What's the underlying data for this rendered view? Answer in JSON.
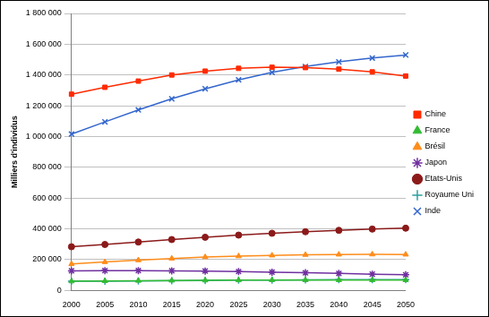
{
  "chart_data": {
    "type": "line",
    "y_label": "Milliers d'individus",
    "categories": [
      "2000",
      "2005",
      "2010",
      "2015",
      "2020",
      "2025",
      "2030",
      "2035",
      "2040",
      "2045",
      "2050"
    ],
    "series": [
      {
        "name": "Chine",
        "color": "#ff2a00",
        "marker": "square",
        "values": [
          1275000,
          1320000,
          1360000,
          1400000,
          1425000,
          1443000,
          1450000,
          1448000,
          1438000,
          1420000,
          1393000
        ]
      },
      {
        "name": "France",
        "color": "#33bb33",
        "marker": "triangle",
        "values": [
          59000,
          61000,
          63000,
          64000,
          65000,
          66000,
          67000,
          67000,
          67000,
          67000,
          67000
        ]
      },
      {
        "name": "Brésil",
        "color": "#ff8c1a",
        "marker": "triangle",
        "values": [
          171000,
          184000,
          196000,
          207000,
          216000,
          222000,
          227000,
          231000,
          233000,
          234000,
          233000
        ]
      },
      {
        "name": "Japon",
        "color": "#7030a0",
        "marker": "star",
        "values": [
          127000,
          128000,
          128000,
          127000,
          125000,
          122000,
          118000,
          114000,
          110000,
          105000,
          101000
        ]
      },
      {
        "name": "Etats-Unis",
        "color": "#8b1a1a",
        "marker": "circle",
        "values": [
          283000,
          298000,
          314000,
          330000,
          345000,
          359000,
          371000,
          381000,
          390000,
          398000,
          404000
        ]
      },
      {
        "name": "Royaume Uni",
        "color": "#2ea0a0",
        "marker": "plus",
        "values": [
          59000,
          60000,
          61000,
          63000,
          64000,
          66000,
          67000,
          68000,
          69000,
          69000,
          69000
        ]
      },
      {
        "name": "Inde",
        "color": "#3366cc",
        "marker": "x",
        "values": [
          1016000,
          1095000,
          1173000,
          1245000,
          1310000,
          1368000,
          1417000,
          1455000,
          1485000,
          1510000,
          1530000
        ]
      }
    ],
    "ylim": [
      0,
      1800000
    ],
    "yticks": [
      0,
      {
        "value": 200000,
        "label": "200 000"
      },
      {
        "value": 400000,
        "label": "400 000"
      },
      {
        "value": 600000,
        "label": "600 000"
      },
      {
        "value": 800000,
        "label": "800 000"
      },
      {
        "value": 1000000,
        "label": "1 000 000"
      },
      {
        "value": 1200000,
        "label": "1 200 000"
      },
      {
        "value": 1400000,
        "label": "1 400 000"
      },
      {
        "value": 1600000,
        "label": "1 600 000"
      },
      {
        "value": 1800000,
        "label": "1 800 000"
      }
    ],
    "grid": true,
    "legend": "right"
  }
}
